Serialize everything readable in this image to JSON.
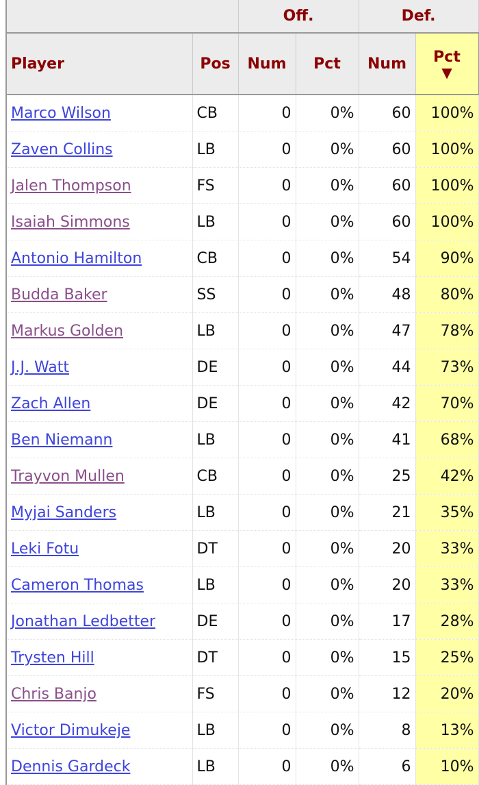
{
  "groups": {
    "off": "Off.",
    "def": "Def."
  },
  "columns": {
    "player": "Player",
    "pos": "Pos",
    "off_num": "Num",
    "off_pct": "Pct",
    "def_num": "Num",
    "def_pct": "Pct"
  },
  "sort_indicator": "▼",
  "colors": {
    "header_text": "#8b0000",
    "sorted_column": "#ffffa6",
    "link": "#3d44dd",
    "visited_link": "#8a4f8a"
  },
  "rows": [
    {
      "player": "Marco Wilson",
      "pos": "CB",
      "off_num": "0",
      "off_pct": "0%",
      "def_num": "60",
      "def_pct": "100%",
      "visited": false
    },
    {
      "player": "Zaven Collins",
      "pos": "LB",
      "off_num": "0",
      "off_pct": "0%",
      "def_num": "60",
      "def_pct": "100%",
      "visited": false
    },
    {
      "player": "Jalen Thompson",
      "pos": "FS",
      "off_num": "0",
      "off_pct": "0%",
      "def_num": "60",
      "def_pct": "100%",
      "visited": true
    },
    {
      "player": "Isaiah Simmons",
      "pos": "LB",
      "off_num": "0",
      "off_pct": "0%",
      "def_num": "60",
      "def_pct": "100%",
      "visited": true
    },
    {
      "player": "Antonio Hamilton",
      "pos": "CB",
      "off_num": "0",
      "off_pct": "0%",
      "def_num": "54",
      "def_pct": "90%",
      "visited": false
    },
    {
      "player": "Budda Baker",
      "pos": "SS",
      "off_num": "0",
      "off_pct": "0%",
      "def_num": "48",
      "def_pct": "80%",
      "visited": true
    },
    {
      "player": "Markus Golden",
      "pos": "LB",
      "off_num": "0",
      "off_pct": "0%",
      "def_num": "47",
      "def_pct": "78%",
      "visited": true
    },
    {
      "player": "J.J. Watt",
      "pos": "DE",
      "off_num": "0",
      "off_pct": "0%",
      "def_num": "44",
      "def_pct": "73%",
      "visited": false
    },
    {
      "player": "Zach Allen",
      "pos": "DE",
      "off_num": "0",
      "off_pct": "0%",
      "def_num": "42",
      "def_pct": "70%",
      "visited": false
    },
    {
      "player": "Ben Niemann",
      "pos": "LB",
      "off_num": "0",
      "off_pct": "0%",
      "def_num": "41",
      "def_pct": "68%",
      "visited": false
    },
    {
      "player": "Trayvon Mullen",
      "pos": "CB",
      "off_num": "0",
      "off_pct": "0%",
      "def_num": "25",
      "def_pct": "42%",
      "visited": true
    },
    {
      "player": "Myjai Sanders",
      "pos": "LB",
      "off_num": "0",
      "off_pct": "0%",
      "def_num": "21",
      "def_pct": "35%",
      "visited": false
    },
    {
      "player": "Leki Fotu",
      "pos": "DT",
      "off_num": "0",
      "off_pct": "0%",
      "def_num": "20",
      "def_pct": "33%",
      "visited": false
    },
    {
      "player": "Cameron Thomas",
      "pos": "LB",
      "off_num": "0",
      "off_pct": "0%",
      "def_num": "20",
      "def_pct": "33%",
      "visited": false
    },
    {
      "player": "Jonathan Ledbetter",
      "pos": "DE",
      "off_num": "0",
      "off_pct": "0%",
      "def_num": "17",
      "def_pct": "28%",
      "visited": false
    },
    {
      "player": "Trysten Hill",
      "pos": "DT",
      "off_num": "0",
      "off_pct": "0%",
      "def_num": "15",
      "def_pct": "25%",
      "visited": false
    },
    {
      "player": "Chris Banjo",
      "pos": "FS",
      "off_num": "0",
      "off_pct": "0%",
      "def_num": "12",
      "def_pct": "20%",
      "visited": true
    },
    {
      "player": "Victor Dimukeje",
      "pos": "LB",
      "off_num": "0",
      "off_pct": "0%",
      "def_num": "8",
      "def_pct": "13%",
      "visited": false
    },
    {
      "player": "Dennis Gardeck",
      "pos": "LB",
      "off_num": "0",
      "off_pct": "0%",
      "def_num": "6",
      "def_pct": "10%",
      "visited": false
    }
  ]
}
